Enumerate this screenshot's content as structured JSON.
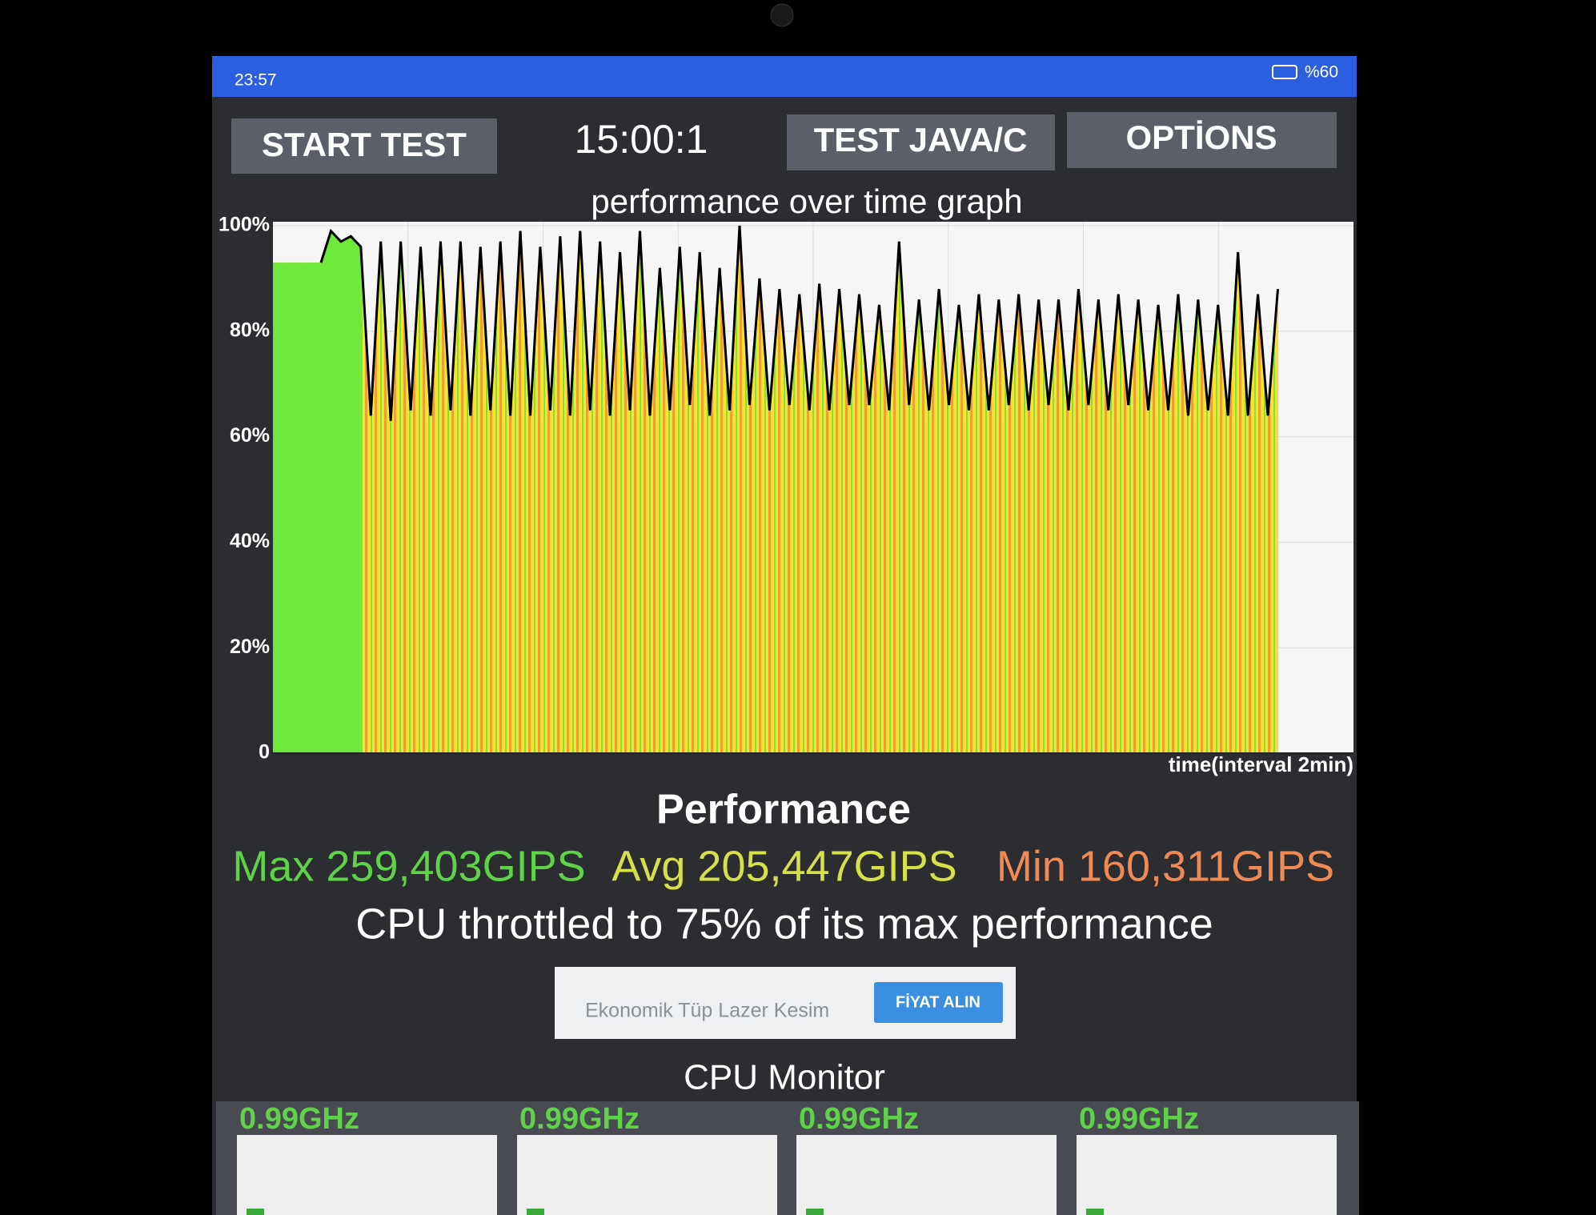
{
  "status_bar": {
    "time": "23:57",
    "battery": "%60"
  },
  "toolbar": {
    "start": "START TEST",
    "timer": "15:00:1",
    "test": "TEST JAVA/C",
    "options": "OPTİONS"
  },
  "chart_data": {
    "type": "line",
    "title": "performance over time graph",
    "x_label": "time(interval 2min)",
    "color": "#000000",
    "values": [
      93,
      99,
      97,
      98,
      96,
      64,
      97,
      63,
      97,
      65,
      96,
      64,
      97,
      65,
      97,
      64,
      96,
      65,
      97,
      64,
      99,
      64,
      96,
      65,
      98,
      64,
      99,
      65,
      97,
      64,
      95,
      65,
      99,
      64,
      92,
      65,
      96,
      66,
      95,
      64,
      92,
      65,
      100,
      66,
      90,
      65,
      88,
      66,
      87,
      65,
      89,
      65,
      88,
      66,
      87,
      66,
      85,
      65,
      97,
      66,
      86,
      65,
      88,
      66,
      85,
      65,
      87,
      65,
      86,
      66,
      87,
      65,
      86,
      66,
      86,
      65,
      88,
      66,
      86,
      65,
      87,
      66,
      86,
      65,
      85,
      65,
      87,
      64,
      86,
      65,
      85,
      64,
      95,
      64,
      87,
      64,
      88
    ],
    "ylim": [
      0,
      100
    ],
    "yticks": [
      0,
      {
        "value": 20,
        "label": "20%"
      },
      {
        "value": 40,
        "label": "40%"
      },
      {
        "value": 60,
        "label": "60%"
      },
      {
        "value": 80,
        "label": "80%"
      },
      {
        "value": 100,
        "label": "100%"
      }
    ],
    "grid": true
  },
  "results": {
    "heading": "Performance",
    "max": "Max 259,403GIPS",
    "avg": "Avg 205,447GIPS",
    "min": "Min 160,311GIPS",
    "summary": "CPU throttled to 75% of its max performance"
  },
  "ad": {
    "text": "Ekonomik Tüp Lazer Kesim",
    "button": "FİYAT ALIN"
  },
  "cpu_monitor": {
    "title": "CPU Monitor",
    "cores": [
      "0.99GHz",
      "0.99GHz",
      "0.99GHz",
      "0.99GHz"
    ]
  }
}
